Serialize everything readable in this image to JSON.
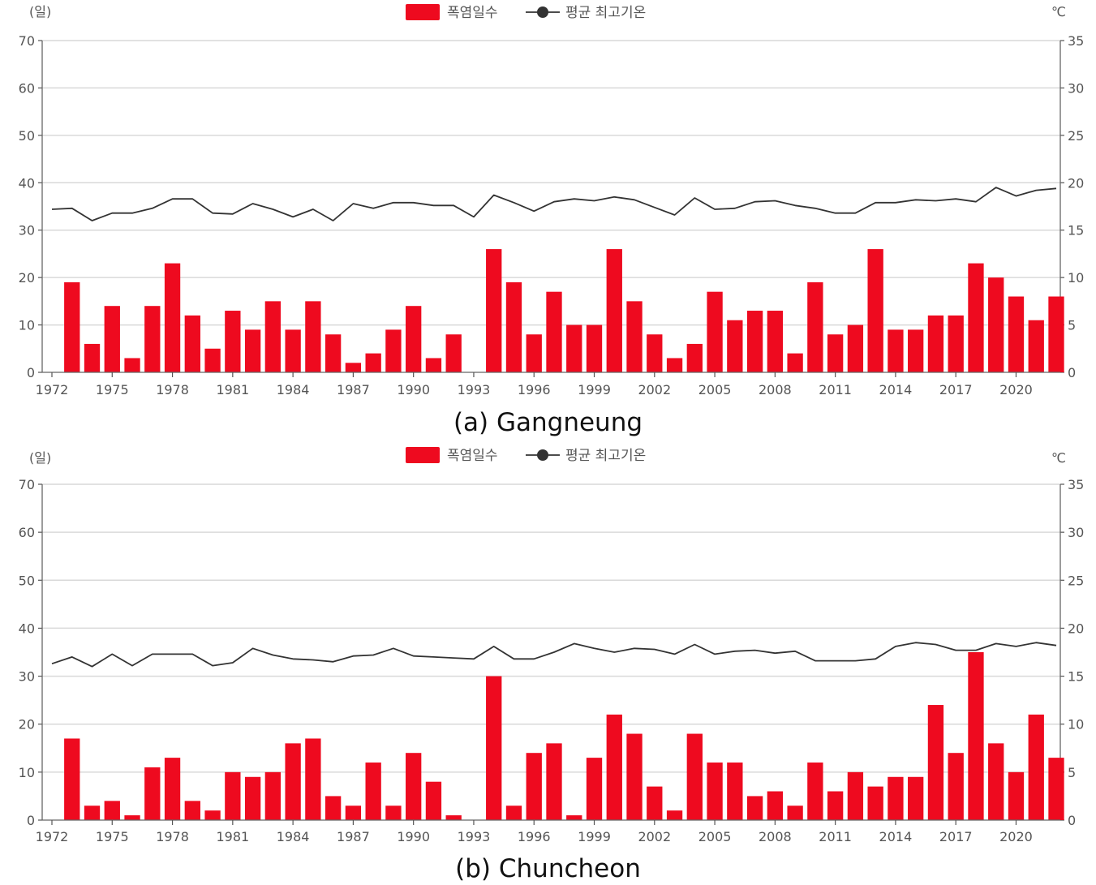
{
  "chart_data": [
    {
      "type": "bar+line",
      "caption": "(a) Gangneung",
      "legend": {
        "bar": "폭염일수",
        "line": "평균 최고기온"
      },
      "y_left_unit": "(일)",
      "y_right_unit": "℃",
      "ylim_left": [
        0,
        70
      ],
      "ylim_right": [
        0,
        35
      ],
      "y_left_ticks": [
        "0",
        "10",
        "20",
        "30",
        "40",
        "50",
        "60",
        "70"
      ],
      "y_right_ticks": [
        "0",
        "5",
        "10",
        "15",
        "20",
        "25",
        "30",
        "35"
      ],
      "x_start": 1972,
      "x_ticks": [
        "1972",
        "1975",
        "1978",
        "1981",
        "1984",
        "1987",
        "1990",
        "1993",
        "1996",
        "1999",
        "2002",
        "2005",
        "2008",
        "2011",
        "2014",
        "2017",
        "2020"
      ],
      "x_tick_years": [
        1972,
        1975,
        1978,
        1981,
        1984,
        1987,
        1990,
        1993,
        1996,
        1999,
        2002,
        2005,
        2008,
        2011,
        2014,
        2017,
        2020
      ],
      "series": [
        {
          "name": "폭염일수",
          "kind": "bar",
          "color": "#ee0a1f",
          "years": [
            1973,
            1974,
            1975,
            1976,
            1977,
            1978,
            1979,
            1980,
            1981,
            1982,
            1983,
            1984,
            1985,
            1986,
            1987,
            1988,
            1989,
            1990,
            1991,
            1992,
            1993,
            1994,
            1995,
            1996,
            1997,
            1998,
            1999,
            2000,
            2001,
            2002,
            2003,
            2004,
            2005,
            2006,
            2007,
            2008,
            2009,
            2010,
            2011,
            2012,
            2013,
            2014,
            2015,
            2016,
            2017,
            2018,
            2019,
            2020,
            2021,
            2022
          ],
          "values": [
            19,
            6,
            14,
            3,
            14,
            23,
            12,
            5,
            13,
            9,
            15,
            9,
            15,
            8,
            2,
            4,
            9,
            14,
            3,
            8,
            0,
            26,
            19,
            8,
            17,
            10,
            10,
            26,
            15,
            8,
            3,
            6,
            17,
            11,
            13,
            13,
            4,
            19,
            8,
            10,
            26,
            9,
            9,
            12,
            12,
            23,
            20,
            16,
            11,
            16
          ]
        },
        {
          "name": "평균 최고기온",
          "kind": "line",
          "color": "#333333",
          "years": [
            1972,
            1973,
            1974,
            1975,
            1976,
            1977,
            1978,
            1979,
            1980,
            1981,
            1982,
            1983,
            1984,
            1985,
            1986,
            1987,
            1988,
            1989,
            1990,
            1991,
            1992,
            1993,
            1994,
            1995,
            1996,
            1997,
            1998,
            1999,
            2000,
            2001,
            2002,
            2003,
            2004,
            2005,
            2006,
            2007,
            2008,
            2009,
            2010,
            2011,
            2012,
            2013,
            2014,
            2015,
            2016,
            2017,
            2018,
            2019,
            2020,
            2021,
            2022
          ],
          "values": [
            17.2,
            17.3,
            16.0,
            16.8,
            16.8,
            17.3,
            18.3,
            18.3,
            16.8,
            16.7,
            17.8,
            17.2,
            16.4,
            17.2,
            16.0,
            17.8,
            17.3,
            17.9,
            17.9,
            17.6,
            17.6,
            16.4,
            18.7,
            17.9,
            17.0,
            18.0,
            18.3,
            18.1,
            18.5,
            18.2,
            17.4,
            16.6,
            18.4,
            17.2,
            17.3,
            18.0,
            18.1,
            17.6,
            17.3,
            16.8,
            16.8,
            17.9,
            17.9,
            18.2,
            18.1,
            18.3,
            18.0,
            19.5,
            18.6,
            19.2,
            19.4
          ]
        }
      ]
    },
    {
      "type": "bar+line",
      "caption": "(b) Chuncheon",
      "legend": {
        "bar": "폭염일수",
        "line": "평균 최고기온"
      },
      "y_left_unit": "(일)",
      "y_right_unit": "℃",
      "ylim_left": [
        0,
        70
      ],
      "ylim_right": [
        0,
        35
      ],
      "y_left_ticks": [
        "0",
        "10",
        "20",
        "30",
        "40",
        "50",
        "60",
        "70"
      ],
      "y_right_ticks": [
        "0",
        "5",
        "10",
        "15",
        "20",
        "25",
        "30",
        "35"
      ],
      "x_start": 1972,
      "x_ticks": [
        "1972",
        "1975",
        "1978",
        "1981",
        "1984",
        "1987",
        "1990",
        "1993",
        "1996",
        "1999",
        "2002",
        "2005",
        "2008",
        "2011",
        "2014",
        "2017",
        "2020"
      ],
      "x_tick_years": [
        1972,
        1975,
        1978,
        1981,
        1984,
        1987,
        1990,
        1993,
        1996,
        1999,
        2002,
        2005,
        2008,
        2011,
        2014,
        2017,
        2020
      ],
      "series": [
        {
          "name": "폭염일수",
          "kind": "bar",
          "color": "#ee0a1f",
          "years": [
            1973,
            1974,
            1975,
            1976,
            1977,
            1978,
            1979,
            1980,
            1981,
            1982,
            1983,
            1984,
            1985,
            1986,
            1987,
            1988,
            1989,
            1990,
            1991,
            1992,
            1993,
            1994,
            1995,
            1996,
            1997,
            1998,
            1999,
            2000,
            2001,
            2002,
            2003,
            2004,
            2005,
            2006,
            2007,
            2008,
            2009,
            2010,
            2011,
            2012,
            2013,
            2014,
            2015,
            2016,
            2017,
            2018,
            2019,
            2020,
            2021,
            2022
          ],
          "values": [
            17,
            3,
            4,
            1,
            11,
            13,
            4,
            2,
            10,
            9,
            10,
            16,
            17,
            5,
            3,
            12,
            3,
            14,
            8,
            1,
            0,
            30,
            3,
            14,
            16,
            1,
            13,
            22,
            18,
            7,
            2,
            18,
            12,
            12,
            5,
            6,
            3,
            12,
            6,
            10,
            7,
            9,
            9,
            24,
            14,
            35,
            16,
            10,
            22,
            13
          ]
        },
        {
          "name": "평균 최고기온",
          "kind": "line",
          "color": "#333333",
          "years": [
            1972,
            1973,
            1974,
            1975,
            1976,
            1977,
            1978,
            1979,
            1980,
            1981,
            1982,
            1983,
            1984,
            1985,
            1986,
            1987,
            1988,
            1989,
            1990,
            1991,
            1992,
            1993,
            1994,
            1995,
            1996,
            1997,
            1998,
            1999,
            2000,
            2001,
            2002,
            2003,
            2004,
            2005,
            2006,
            2007,
            2008,
            2009,
            2010,
            2011,
            2012,
            2013,
            2014,
            2015,
            2016,
            2017,
            2018,
            2019,
            2020,
            2021,
            2022
          ],
          "values": [
            16.3,
            17.0,
            16.0,
            17.3,
            16.1,
            17.3,
            17.3,
            17.3,
            16.1,
            16.4,
            17.9,
            17.2,
            16.8,
            16.7,
            16.5,
            17.1,
            17.2,
            17.9,
            17.1,
            17.0,
            16.9,
            16.8,
            18.1,
            16.8,
            16.8,
            17.5,
            18.4,
            17.9,
            17.5,
            17.9,
            17.8,
            17.3,
            18.3,
            17.3,
            17.6,
            17.7,
            17.4,
            17.6,
            16.6,
            16.6,
            16.6,
            16.8,
            18.1,
            18.5,
            18.3,
            17.7,
            17.7,
            18.4,
            18.1,
            18.5,
            18.2
          ]
        }
      ]
    }
  ]
}
